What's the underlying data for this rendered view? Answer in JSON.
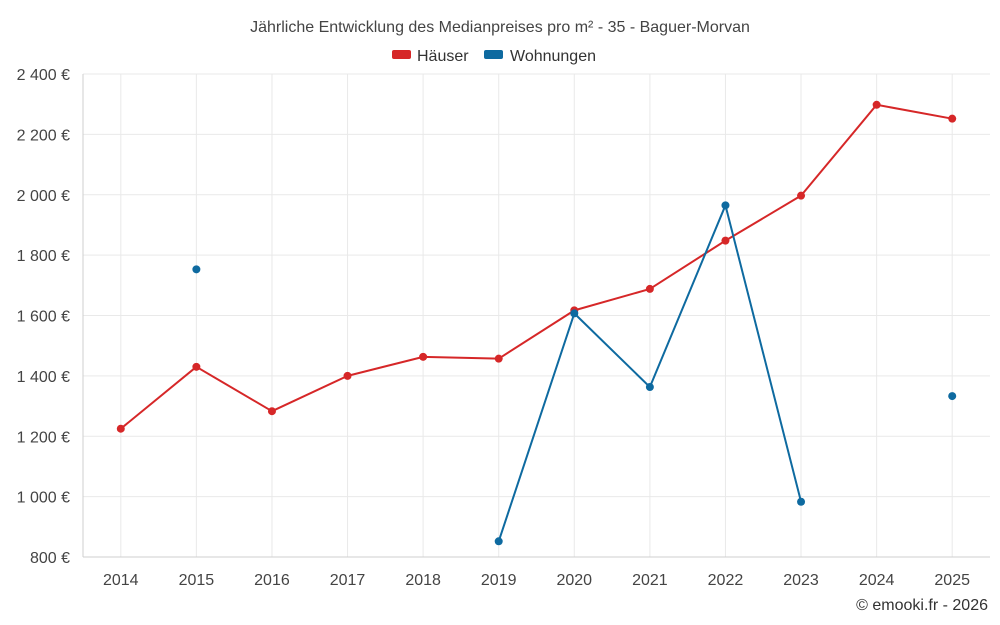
{
  "chart_data": {
    "type": "line",
    "title": "Jährliche Entwicklung des Medianpreises pro m² - 35 - Baguer-Morvan",
    "xlabel": "",
    "ylabel": "",
    "categories": [
      "2014",
      "2015",
      "2016",
      "2017",
      "2018",
      "2019",
      "2020",
      "2021",
      "2022",
      "2023",
      "2024",
      "2025"
    ],
    "ylim": [
      800,
      2400
    ],
    "yticks": [
      800,
      1000,
      1200,
      1400,
      1600,
      1800,
      2000,
      2200,
      2400
    ],
    "ytick_labels": [
      "800 €",
      "1 000 €",
      "1 200 €",
      "1 400 €",
      "1 600 €",
      "1 800 €",
      "2 000 €",
      "2 200 €",
      "2 400 €"
    ],
    "grid": true,
    "legend_position": "top-center",
    "series": [
      {
        "name": "Häuser",
        "color": "#d62728",
        "values": [
          1225,
          1430,
          1283,
          1400,
          1463,
          1457,
          1617,
          1688,
          1848,
          1997,
          2298,
          2252
        ]
      },
      {
        "name": "Wohnungen",
        "color": "#0e6aa0",
        "values": [
          null,
          1753,
          null,
          null,
          null,
          852,
          1607,
          1363,
          1965,
          983,
          null,
          1333
        ]
      }
    ]
  },
  "credit": "© emooki.fr - 2026"
}
